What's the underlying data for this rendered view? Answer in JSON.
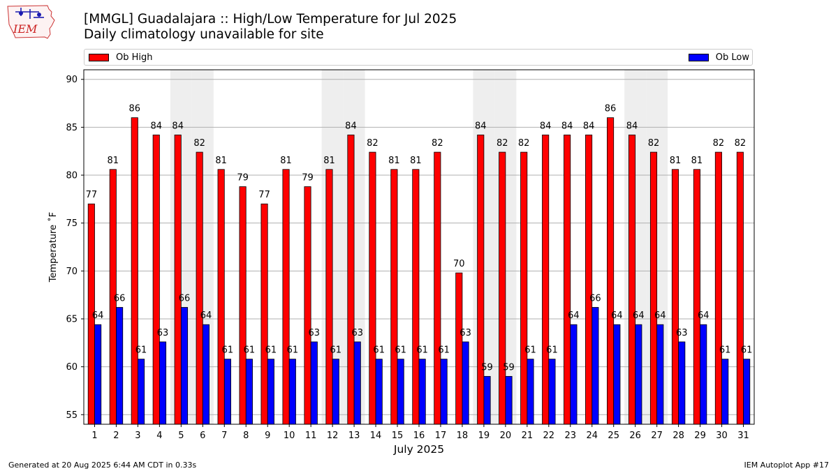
{
  "header": {
    "title": "[MMGL] Guadalajara :: High/Low Temperature for Jul 2025",
    "subtitle": "Daily climatology unavailable for site",
    "logo_text": "IEM"
  },
  "legend": {
    "high_label": "Ob High",
    "low_label": "Ob Low"
  },
  "colors": {
    "high": "#ff0000",
    "low": "#0000ff",
    "weekend_shade": "#eeeeee",
    "grid": "#b0b0b0"
  },
  "footer": {
    "generated": "Generated at 20 Aug 2025 6:44 AM CDT in 0.33s",
    "app": "IEM Autoplot App #17"
  },
  "chart_data": {
    "type": "bar",
    "title": "[MMGL] Guadalajara :: High/Low Temperature for Jul 2025",
    "subtitle": "Daily climatology unavailable for site",
    "xlabel": "July 2025",
    "ylabel": "Temperature ˚F",
    "ylim": [
      54,
      91
    ],
    "yticks": [
      55,
      60,
      65,
      70,
      75,
      80,
      85,
      90
    ],
    "grid": true,
    "legend_placement": "top",
    "shaded_days": [
      5,
      6,
      12,
      13,
      19,
      20,
      26,
      27
    ],
    "categories": [
      "1",
      "2",
      "3",
      "4",
      "5",
      "6",
      "7",
      "8",
      "9",
      "10",
      "11",
      "12",
      "13",
      "14",
      "15",
      "16",
      "17",
      "18",
      "19",
      "20",
      "21",
      "22",
      "23",
      "24",
      "25",
      "26",
      "27",
      "28",
      "29",
      "30",
      "31"
    ],
    "series": [
      {
        "name": "Ob High",
        "values": [
          77.0,
          80.6,
          86.0,
          84.2,
          84.2,
          82.4,
          80.6,
          78.8,
          77.0,
          80.6,
          78.8,
          80.6,
          84.2,
          82.4,
          80.6,
          80.6,
          82.4,
          69.8,
          84.2,
          82.4,
          82.4,
          84.2,
          84.2,
          84.2,
          86.0,
          84.2,
          82.4,
          80.6,
          80.6,
          82.4,
          82.4
        ],
        "labels": [
          "77",
          "81",
          "86",
          "84",
          "84",
          "82",
          "81",
          "79",
          "77",
          "81",
          "79",
          "81",
          "84",
          "82",
          "81",
          "81",
          "82",
          "70",
          "84",
          "82",
          "82",
          "84",
          "84",
          "84",
          "86",
          "84",
          "82",
          "81",
          "81",
          "82",
          "82"
        ]
      },
      {
        "name": "Ob Low",
        "values": [
          64.4,
          66.2,
          60.8,
          62.6,
          66.2,
          64.4,
          60.8,
          60.8,
          60.8,
          60.8,
          62.6,
          60.8,
          62.6,
          60.8,
          60.8,
          60.8,
          60.8,
          62.6,
          59.0,
          59.0,
          60.8,
          60.8,
          64.4,
          66.2,
          64.4,
          64.4,
          64.4,
          62.6,
          64.4,
          60.8,
          60.8
        ],
        "labels": [
          "64",
          "66",
          "61",
          "63",
          "66",
          "64",
          "61",
          "61",
          "61",
          "61",
          "63",
          "61",
          "63",
          "61",
          "61",
          "61",
          "61",
          "63",
          "59",
          "59",
          "61",
          "61",
          "64",
          "66",
          "64",
          "64",
          "64",
          "63",
          "64",
          "61",
          "61"
        ]
      }
    ]
  }
}
